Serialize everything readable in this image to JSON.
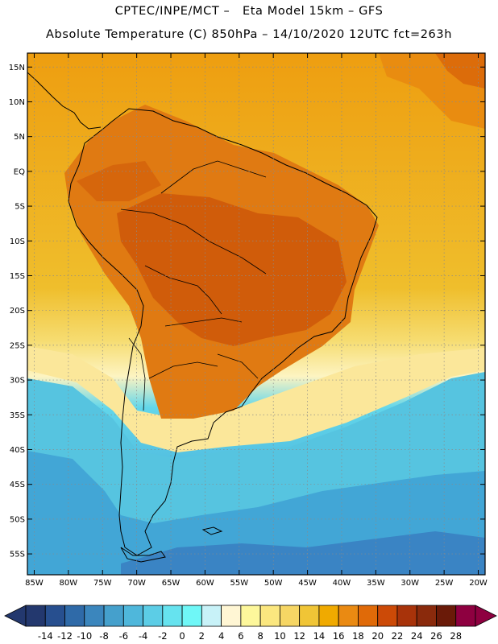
{
  "header": {
    "line1": "CPTEC/INPE/MCT –   Eta Model 15km – GFS",
    "line2": "Absolute Temperature (C) 850hPa – 14/10/2020 12UTC fct=263h"
  },
  "map": {
    "region": "South America",
    "lon_range": [
      -86,
      -19
    ],
    "lat_range": [
      -58,
      17
    ],
    "lat_ticks": [
      {
        "lat": 15,
        "label": "15N"
      },
      {
        "lat": 10,
        "label": "10N"
      },
      {
        "lat": 5,
        "label": "5N"
      },
      {
        "lat": 0,
        "label": "EQ"
      },
      {
        "lat": -5,
        "label": "5S"
      },
      {
        "lat": -10,
        "label": "10S"
      },
      {
        "lat": -15,
        "label": "15S"
      },
      {
        "lat": -20,
        "label": "20S"
      },
      {
        "lat": -25,
        "label": "25S"
      },
      {
        "lat": -30,
        "label": "30S"
      },
      {
        "lat": -35,
        "label": "35S"
      },
      {
        "lat": -40,
        "label": "40S"
      },
      {
        "lat": -45,
        "label": "45S"
      },
      {
        "lat": -50,
        "label": "50S"
      },
      {
        "lat": -55,
        "label": "55S"
      }
    ],
    "lon_ticks": [
      {
        "lon": -85,
        "label": "85W"
      },
      {
        "lon": -80,
        "label": "80W"
      },
      {
        "lon": -75,
        "label": "75W"
      },
      {
        "lon": -70,
        "label": "70W"
      },
      {
        "lon": -65,
        "label": "65W"
      },
      {
        "lon": -60,
        "label": "60W"
      },
      {
        "lon": -55,
        "label": "55W"
      },
      {
        "lon": -50,
        "label": "50W"
      },
      {
        "lon": -45,
        "label": "45W"
      },
      {
        "lon": -40,
        "label": "40W"
      },
      {
        "lon": -35,
        "label": "35W"
      },
      {
        "lon": -30,
        "label": "30W"
      },
      {
        "lon": -25,
        "label": "25W"
      },
      {
        "lon": -20,
        "label": "20W"
      }
    ],
    "grid": true,
    "colors": {
      "ocean_tropical": "#edb820",
      "land_warm": "#e07810",
      "land_hot": "#d05c0a",
      "south_cool": "#5cc8e0",
      "south_cold": "#3a8cc8"
    }
  },
  "colorbar": {
    "labels": [
      "-14",
      "-12",
      "-10",
      "-8",
      "-6",
      "-4",
      "-2",
      "0",
      "2",
      "4",
      "6",
      "8",
      "10",
      "12",
      "14",
      "16",
      "18",
      "20",
      "22",
      "24",
      "26",
      "28"
    ],
    "colors": [
      "#23386e",
      "#274f8f",
      "#2f6aa8",
      "#3b86bd",
      "#45a0cc",
      "#4fb7db",
      "#5ccde6",
      "#66e3ef",
      "#6ff7f7",
      "#c8f2f8",
      "#fff6d4",
      "#fdf79b",
      "#fbe77f",
      "#f6d664",
      "#f0c536",
      "#f0aa00",
      "#ea8a12",
      "#e06a08",
      "#cc4a07",
      "#a8330a",
      "#8a2a0c",
      "#6a1a08",
      "#8e0040"
    ],
    "under_color": "#23386e",
    "over_color": "#8e0040"
  }
}
